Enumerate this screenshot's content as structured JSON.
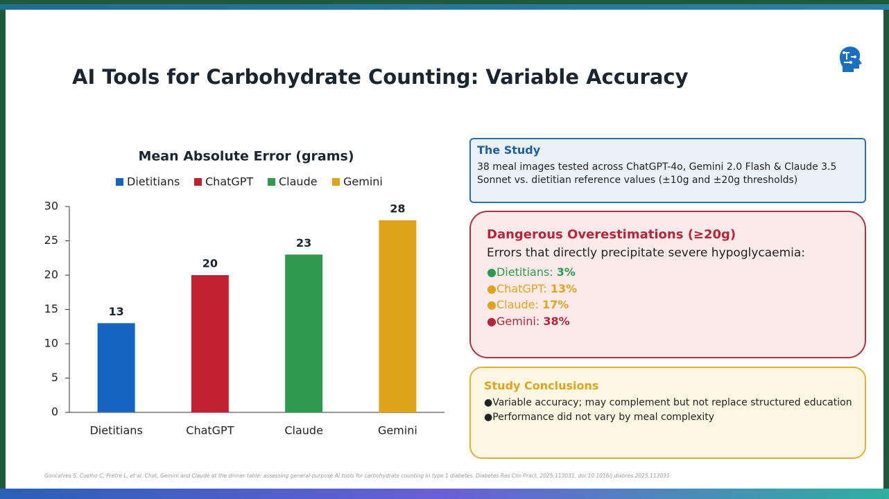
{
  "title": "AI Tools for Carbohydrate Counting: Variable Accuracy",
  "chart_data": {
    "type": "bar",
    "title": "Mean Absolute Error (grams)",
    "categories": [
      "Dietitians",
      "ChatGPT",
      "Claude",
      "Gemini"
    ],
    "values": [
      13,
      20,
      23,
      28
    ],
    "colors": [
      "#1565c0",
      "#c0202f",
      "#2e9a4e",
      "#e0a41c"
    ],
    "ylim": [
      0,
      30
    ],
    "yticks": [
      0,
      5,
      10,
      15,
      20,
      25,
      30
    ],
    "grid": false,
    "legend": "top"
  },
  "study": {
    "title": "The Study",
    "text": "38 meal images tested across ChatGPT-4o, Gemini 2.0 Flash & Claude 3.5 Sonnet vs. dietitian reference values (±10g and ±20g thresholds)"
  },
  "danger": {
    "title": "Dangerous Overestimations (≥20g)",
    "subtitle": "Errors that directly precipitate severe hypoglycaemia:",
    "items": [
      {
        "label": "●Dietitians:",
        "value": "3%",
        "color": "#2e9a4e"
      },
      {
        "label": "●ChatGPT:",
        "value": "13%",
        "color": "#e0a41c"
      },
      {
        "label": "●Claude:",
        "value": "17%",
        "color": "#e0a41c"
      },
      {
        "label": "●Gemini:",
        "value": "38%",
        "color": "#b5263a"
      }
    ]
  },
  "conclusions": {
    "title": "Study Conclusions",
    "items": [
      "●Variable accuracy; may complement but not replace structured education",
      "●Performance did not vary by meal complexity"
    ]
  },
  "citation": "Goncalves S, Coelho C, Pretre L, et al. Chat, Gemini and Claude at the dinner table: assessing general-purpose AI tools for carbohydrate counting in type 1 diabetes. Diabetes Res Clin Pract. 2025;113031. doi:10.1016/j.diabres.2025.113031"
}
